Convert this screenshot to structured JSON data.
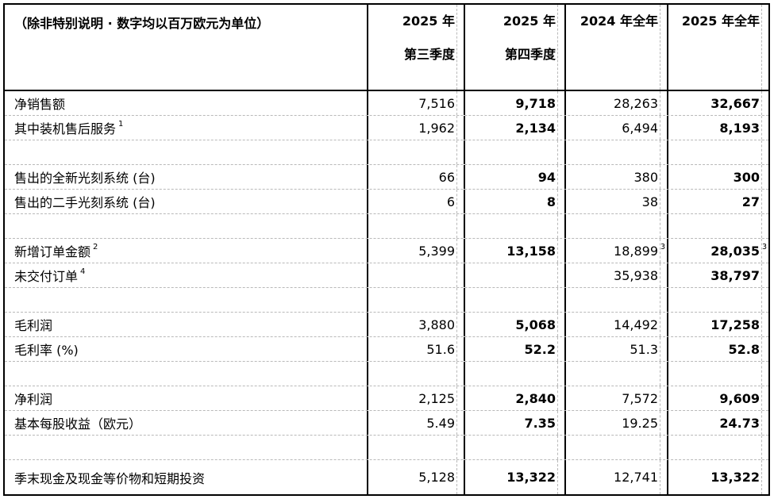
{
  "table": {
    "unit_note": "（除非特别说明 · 数字均以百万欧元为单位）",
    "colors": {
      "border": "#000000",
      "gridline": "#b9b9b9",
      "text": "#000000",
      "background": "#ffffff"
    },
    "columns": [
      {
        "id": "2025-q3",
        "line1": "2025 年",
        "line2": "第三季度",
        "bold": false
      },
      {
        "id": "2025-q4",
        "line1": "2025 年",
        "line2": "第四季度",
        "bold": true
      },
      {
        "id": "2024-fy",
        "line1": "2024 年全年",
        "line2": "",
        "bold": false
      },
      {
        "id": "2025-fy",
        "line1": "2025 年全年",
        "line2": "",
        "bold": true
      }
    ],
    "rows": [
      {
        "type": "data",
        "label": "净销售额",
        "label_sup": "",
        "values": [
          "7,516",
          "9,718",
          "28,263",
          "32,667"
        ],
        "value_sups": [
          "",
          "",
          "",
          ""
        ]
      },
      {
        "type": "data",
        "label": "其中装机售后服务",
        "label_sup": "1",
        "values": [
          "1,962",
          "2,134",
          "6,494",
          "8,193"
        ],
        "value_sups": [
          "",
          "",
          "",
          ""
        ]
      },
      {
        "type": "blank"
      },
      {
        "type": "data",
        "label": "售出的全新光刻系统 (台)",
        "label_sup": "",
        "values": [
          "66",
          "94",
          "380",
          "300"
        ],
        "value_sups": [
          "",
          "",
          "",
          ""
        ]
      },
      {
        "type": "data",
        "label": "售出的二手光刻系统 (台)",
        "label_sup": "",
        "values": [
          "6",
          "8",
          "38",
          "27"
        ],
        "value_sups": [
          "",
          "",
          "",
          ""
        ]
      },
      {
        "type": "blank"
      },
      {
        "type": "data",
        "label": "新增订单金额",
        "label_sup": "2",
        "values": [
          "5,399",
          "13,158",
          "18,899",
          "28,035"
        ],
        "value_sups": [
          "",
          "",
          "3",
          "3"
        ]
      },
      {
        "type": "data",
        "label": "未交付订单",
        "label_sup": "4",
        "values": [
          "",
          "",
          "35,938",
          "38,797"
        ],
        "value_sups": [
          "",
          "",
          "",
          ""
        ]
      },
      {
        "type": "blank"
      },
      {
        "type": "data",
        "label": "毛利润",
        "label_sup": "",
        "values": [
          "3,880",
          "5,068",
          "14,492",
          "17,258"
        ],
        "value_sups": [
          "",
          "",
          "",
          ""
        ]
      },
      {
        "type": "data",
        "label": "毛利率 (%)",
        "label_sup": "",
        "values": [
          "51.6",
          "52.2",
          "51.3",
          "52.8"
        ],
        "value_sups": [
          "",
          "",
          "",
          ""
        ]
      },
      {
        "type": "blank"
      },
      {
        "type": "data",
        "label": "净利润",
        "label_sup": "",
        "values": [
          "2,125",
          "2,840",
          "7,572",
          "9,609"
        ],
        "value_sups": [
          "",
          "",
          "",
          ""
        ]
      },
      {
        "type": "data",
        "label": "基本每股收益（欧元）",
        "label_sup": "",
        "values": [
          "5.49",
          "7.35",
          "19.25",
          "24.73"
        ],
        "value_sups": [
          "",
          "",
          "",
          ""
        ]
      },
      {
        "type": "blank"
      },
      {
        "type": "data",
        "label": "季末现金及现金等价物和短期投资",
        "label_sup": "",
        "values": [
          "5,128",
          "13,322",
          "12,741",
          "13,322"
        ],
        "value_sups": [
          "",
          "",
          "",
          ""
        ],
        "last": true
      }
    ]
  }
}
